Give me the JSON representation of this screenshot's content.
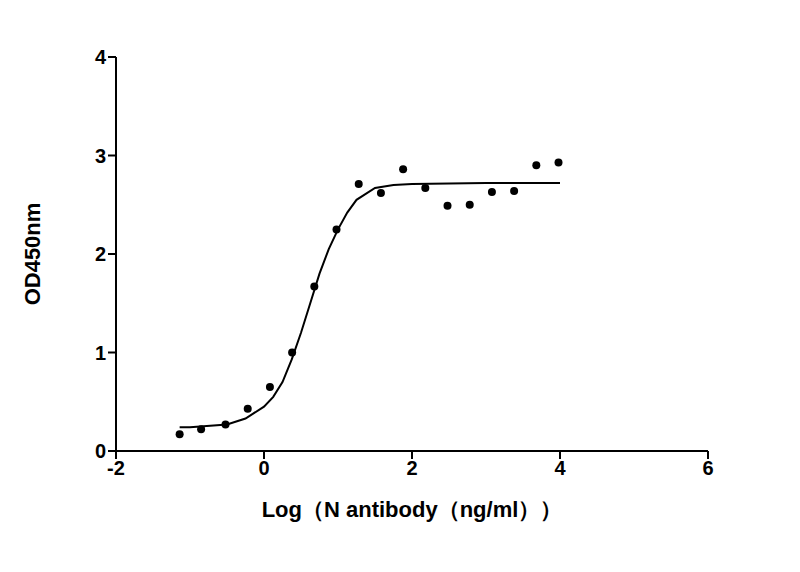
{
  "chart_data": {
    "type": "scatter",
    "xlabel": "Log（N antibody（ng/ml））",
    "ylabel": "OD450nm",
    "xlim": [
      -2,
      6
    ],
    "xticks": [
      -2,
      0,
      2,
      4,
      6
    ],
    "ylim": [
      0,
      4
    ],
    "yticks": [
      0,
      1,
      2,
      3,
      4
    ],
    "grid": false,
    "series": [
      {
        "type": "scatter",
        "marker": "circle",
        "color": "#000000",
        "x": [
          -1.14,
          -0.85,
          -0.52,
          -0.22,
          0.08,
          0.38,
          0.68,
          0.98,
          1.28,
          1.58,
          1.88,
          2.18,
          2.48,
          2.78,
          3.08,
          3.38,
          3.68,
          3.98
        ],
        "values": [
          0.17,
          0.22,
          0.27,
          0.43,
          0.65,
          1.0,
          1.67,
          2.25,
          2.71,
          2.62,
          2.86,
          2.67,
          2.49,
          2.5,
          2.63,
          2.64,
          2.9,
          2.93
        ]
      },
      {
        "type": "line",
        "color": "#000000",
        "x": [
          -1.14,
          -1.0,
          -0.5,
          -0.25,
          0.0,
          0.125,
          0.25,
          0.375,
          0.5,
          0.625,
          0.75,
          0.875,
          1.0,
          1.125,
          1.25,
          1.5,
          1.75,
          2.0,
          3.0,
          4.0
        ],
        "values": [
          0.24,
          0.24,
          0.27,
          0.33,
          0.45,
          0.55,
          0.7,
          0.93,
          1.2,
          1.5,
          1.8,
          2.05,
          2.25,
          2.42,
          2.55,
          2.67,
          2.7,
          2.71,
          2.72,
          2.72
        ]
      }
    ]
  }
}
